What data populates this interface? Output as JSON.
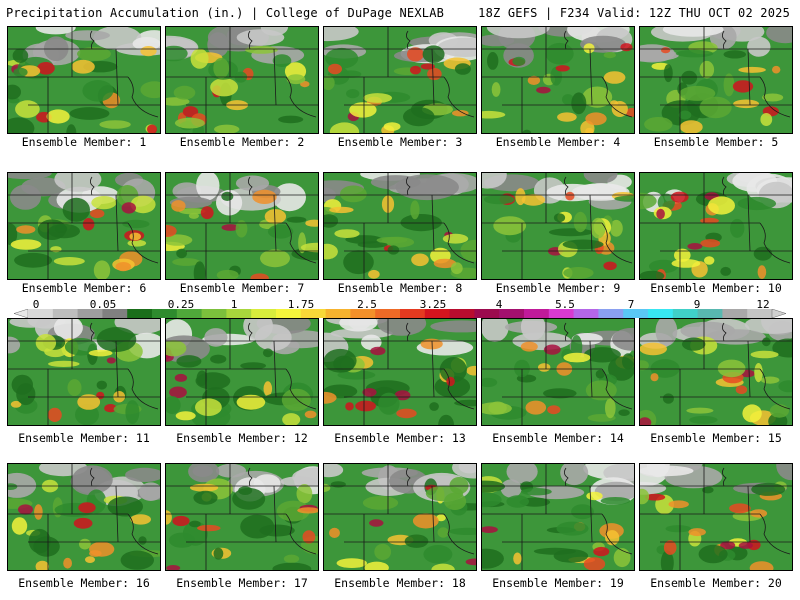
{
  "header": {
    "title": "Precipitation Accumulation (in.) | College of DuPage NEXLAB",
    "run_info": "18Z GEFS | F234 Valid: 12Z THU OCT 02 2025"
  },
  "colorbar": {
    "labels": [
      "0",
      "0.05",
      "0.25",
      "1",
      "1.75",
      "2.5",
      "3.25",
      "4",
      "5.5",
      "7",
      "9",
      "12"
    ],
    "colors": [
      "#d9d9d9",
      "#bdbdbd",
      "#9e9e9e",
      "#808080",
      "#1a6e1a",
      "#2e8b2e",
      "#4fa83a",
      "#7cc03c",
      "#a8d63c",
      "#d8ec3c",
      "#f4f43c",
      "#f8d838",
      "#f6b32e",
      "#f3902a",
      "#ee6a26",
      "#e53a20",
      "#d4141e",
      "#b80c2e",
      "#9c0a4e",
      "#a3106e",
      "#c01a9a",
      "#d83ad0",
      "#b466e8",
      "#8aa0f0",
      "#5ac8f4",
      "#38e6f2",
      "#40d0c8",
      "#58b8b0",
      "#a8a8a8",
      "#c4c4c4"
    ]
  },
  "members": [
    {
      "label": "Ensemble Member: 1"
    },
    {
      "label": "Ensemble Member: 2"
    },
    {
      "label": "Ensemble Member: 3"
    },
    {
      "label": "Ensemble Member: 4"
    },
    {
      "label": "Ensemble Member: 5"
    },
    {
      "label": "Ensemble Member: 6"
    },
    {
      "label": "Ensemble Member: 7"
    },
    {
      "label": "Ensemble Member: 8"
    },
    {
      "label": "Ensemble Member: 9"
    },
    {
      "label": "Ensemble Member: 10"
    },
    {
      "label": "Ensemble Member: 11"
    },
    {
      "label": "Ensemble Member: 12"
    },
    {
      "label": "Ensemble Member: 13"
    },
    {
      "label": "Ensemble Member: 14"
    },
    {
      "label": "Ensemble Member: 15"
    },
    {
      "label": "Ensemble Member: 16"
    },
    {
      "label": "Ensemble Member: 17"
    },
    {
      "label": "Ensemble Member: 18"
    },
    {
      "label": "Ensemble Member: 19"
    },
    {
      "label": "Ensemble Member: 20"
    }
  ]
}
